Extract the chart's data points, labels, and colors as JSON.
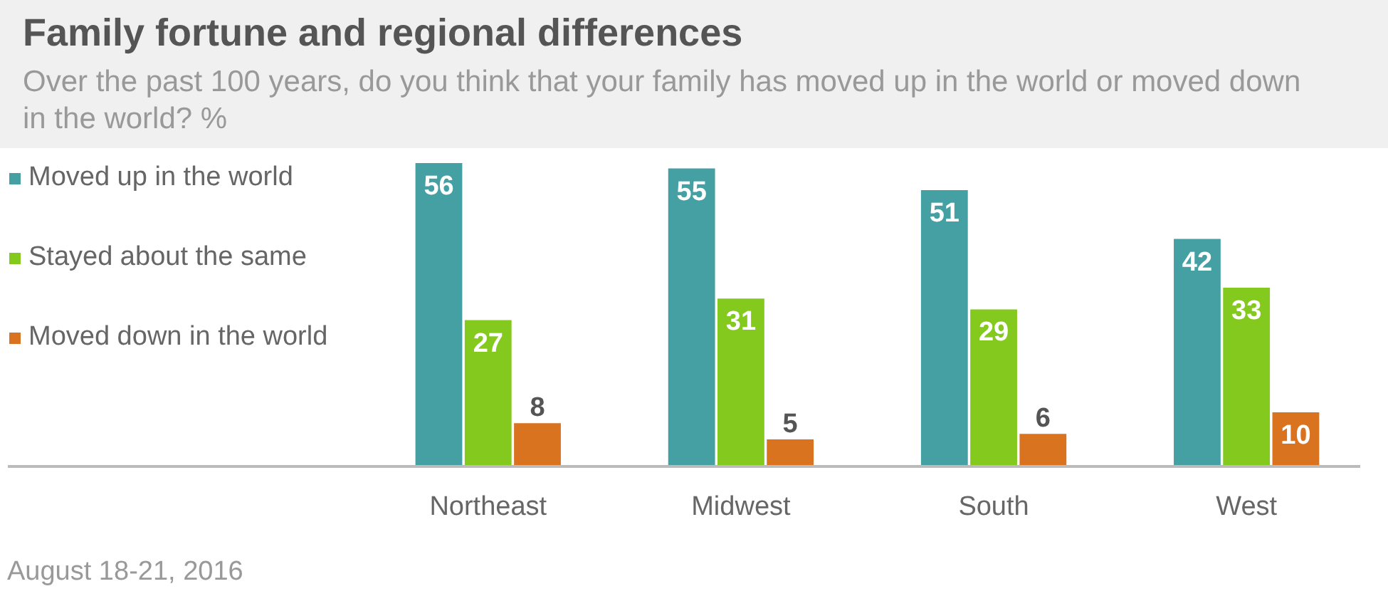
{
  "chart_data": {
    "type": "bar",
    "title": "Family fortune and regional differences",
    "subtitle": "Over the past 100 years, do you think that your family has moved up in the world or moved down in the world? %",
    "categories": [
      "Northeast",
      "Midwest",
      "South",
      "West"
    ],
    "series": [
      {
        "name": "Moved up in the world",
        "color": "#45a0a3",
        "values": [
          56,
          55,
          51,
          42
        ]
      },
      {
        "name": "Stayed about the same",
        "color": "#84c91e",
        "values": [
          27,
          31,
          29,
          33
        ]
      },
      {
        "name": "Moved down in the world",
        "color": "#d9731f",
        "values": [
          8,
          5,
          6,
          10
        ]
      }
    ],
    "data_labels": true,
    "legend": "left",
    "grid": false,
    "annotations": [
      "August 18-21, 2016"
    ]
  }
}
